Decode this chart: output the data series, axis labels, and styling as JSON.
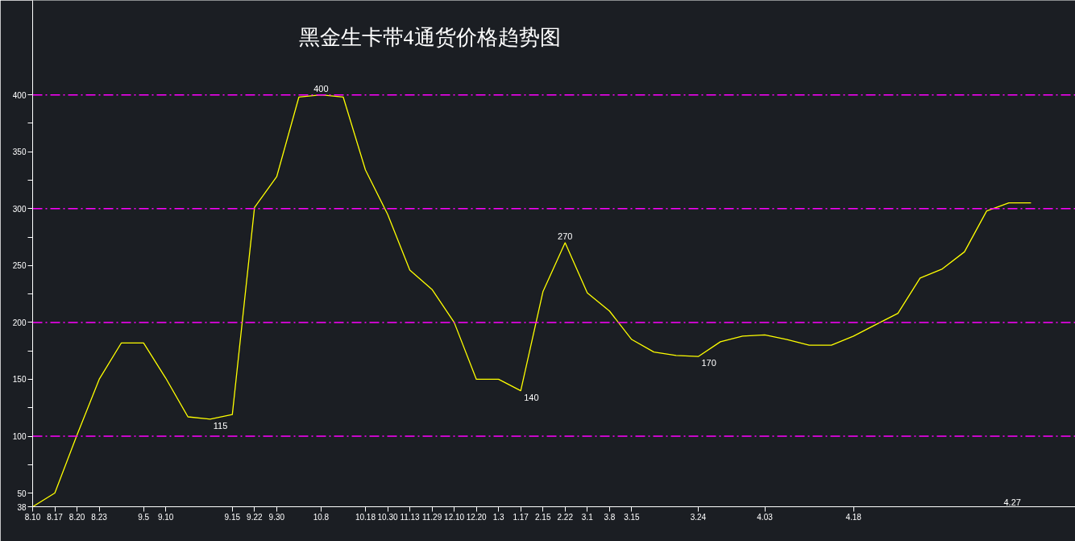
{
  "chart_data": {
    "type": "line",
    "title": "黑金生卡带4通货价格趋势图",
    "categories": [
      "8.10",
      "8.17",
      "8.20",
      "8.23",
      null,
      "9.5",
      "9.10",
      null,
      null,
      "9.15",
      "9.22",
      "9.30",
      null,
      "10.8",
      null,
      "10.18",
      "10.30",
      "11.13",
      "11.29",
      "12.10",
      "12.20",
      "1.3",
      "1.17",
      "2.15",
      "2.22",
      "3.1",
      "3.8",
      "3.15",
      null,
      null,
      "3.24",
      null,
      null,
      "4.03",
      null,
      null,
      null,
      "4.18",
      null,
      null,
      null,
      null,
      null,
      null,
      null,
      null
    ],
    "series": [
      {
        "color": "#ffff00",
        "values": [
          38,
          50,
          101,
          150,
          182,
          182,
          151,
          117,
          115,
          119,
          301,
          328,
          398,
          400,
          398,
          334,
          295,
          246,
          229,
          200,
          150,
          150,
          140,
          227,
          270,
          226,
          210,
          185,
          174,
          171,
          170,
          183,
          188,
          189,
          185,
          180,
          180,
          188,
          198,
          208,
          239,
          247,
          262,
          298,
          305,
          305
        ],
        "value_labels": [
          null,
          null,
          null,
          null,
          null,
          null,
          null,
          null,
          "115",
          null,
          null,
          null,
          null,
          "400",
          null,
          null,
          null,
          null,
          null,
          null,
          null,
          null,
          "140",
          null,
          "270",
          null,
          null,
          null,
          null,
          null,
          "170",
          null,
          null,
          null,
          null,
          null,
          null,
          null,
          null,
          null,
          null,
          null,
          null,
          null,
          null,
          null
        ]
      }
    ],
    "ylim": [
      38,
      483
    ],
    "yticks": [
      38,
      50,
      {
        "value": 75,
        "label": null
      },
      100,
      {
        "value": 125,
        "label": null
      },
      150,
      {
        "value": 175,
        "label": null
      },
      200,
      {
        "value": 225,
        "label": null
      },
      250,
      {
        "value": 275,
        "label": null
      },
      300,
      {
        "value": 325,
        "label": null
      },
      350,
      {
        "value": 375,
        "label": null
      },
      400
    ],
    "ref_lines": [
      {
        "axis": "y",
        "value": 100,
        "color": "#ff00ff",
        "line_style": "dashdot"
      },
      {
        "axis": "y",
        "value": 200,
        "color": "#ff00ff",
        "line_style": "dashdot"
      },
      {
        "axis": "y",
        "value": 300,
        "color": "#ff00ff",
        "line_style": "dashdot"
      },
      {
        "axis": "y",
        "value": 400,
        "color": "#ff00ff",
        "line_style": "dashdot"
      }
    ],
    "annotations": [
      "4.27"
    ],
    "marker": "none",
    "line_style": "solid"
  }
}
